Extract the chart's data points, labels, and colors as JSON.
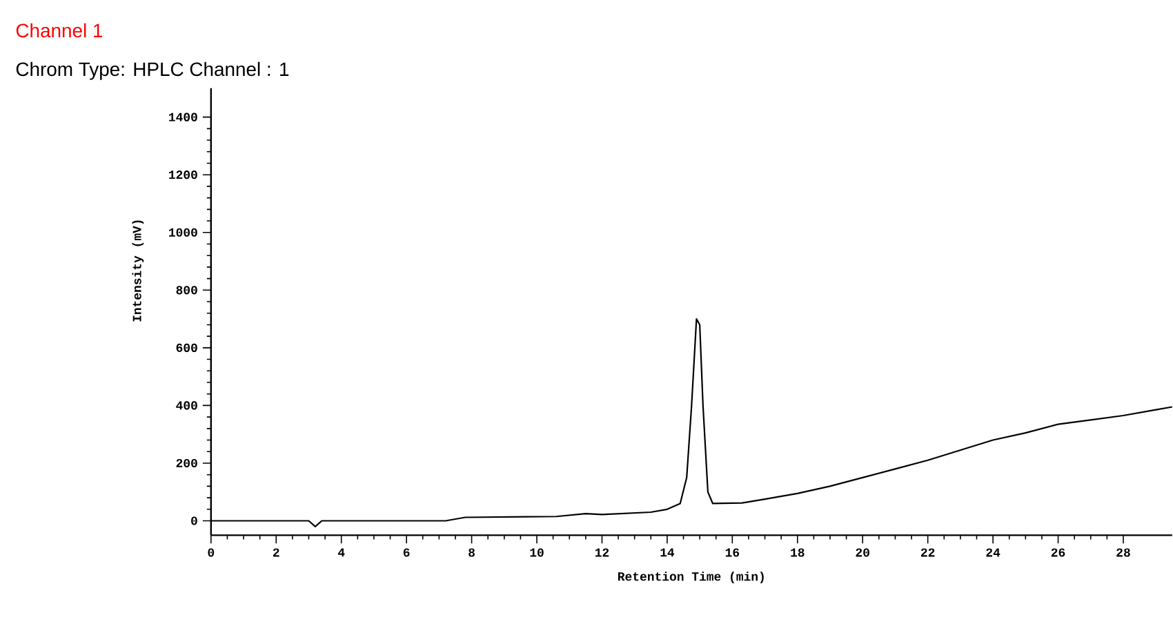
{
  "chart_data": {
    "type": "line",
    "title": "Channel 1",
    "subtitle": "Chrom Type: HPLC Channel : 1",
    "xlabel": "Retention Time (min)",
    "ylabel": "Intensity (mV)",
    "xlim": [
      0,
      29.5
    ],
    "ylim": [
      -50,
      1500
    ],
    "xticks": [
      0,
      2,
      4,
      6,
      8,
      10,
      12,
      14,
      16,
      18,
      20,
      22,
      24,
      26,
      28
    ],
    "yticks": [
      0,
      200,
      400,
      600,
      800,
      1000,
      1200,
      1400
    ],
    "grid": false,
    "marker": "none",
    "line_style": "solid",
    "series": [
      {
        "color": "#000000",
        "x": [
          0,
          3.0,
          3.2,
          3.4,
          7.2,
          7.8,
          10.6,
          11.5,
          12.0,
          13.5,
          14.0,
          14.4,
          14.6,
          14.75,
          14.9,
          15.0,
          15.1,
          15.25,
          15.4,
          16.3,
          17,
          18,
          19,
          20,
          21,
          22,
          23,
          24,
          25,
          26,
          27,
          28,
          29,
          29.5
        ],
        "values": [
          0,
          0,
          -20,
          0,
          0,
          12,
          15,
          25,
          22,
          30,
          40,
          60,
          150,
          400,
          700,
          680,
          400,
          100,
          60,
          62,
          75,
          95,
          120,
          150,
          180,
          210,
          245,
          280,
          305,
          335,
          350,
          365,
          385,
          395
        ]
      }
    ]
  }
}
